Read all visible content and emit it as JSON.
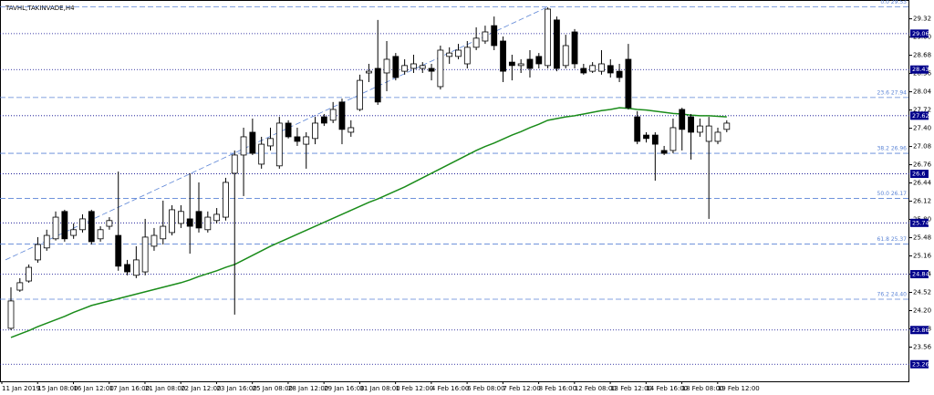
{
  "chart_data": {
    "type": "candlestick",
    "title": "TAVHL,TAKINVADE,H4",
    "categories": [
      "11 Jan 2019",
      null,
      null,
      null,
      "15 Jan 08:00",
      null,
      null,
      null,
      "16 Jan 12:00",
      null,
      null,
      null,
      "17 Jan 16:00",
      null,
      null,
      null,
      "21 Jan 08:00",
      null,
      null,
      null,
      "22 Jan 12:00",
      null,
      null,
      null,
      "23 Jan 16:00",
      null,
      null,
      null,
      "25 Jan 08:00",
      null,
      null,
      null,
      "28 Jan 12:00",
      null,
      null,
      null,
      "29 Jan 16:00",
      null,
      null,
      null,
      "31 Jan 08:00",
      null,
      null,
      null,
      "1 Feb 12:00",
      null,
      null,
      null,
      "4 Feb 16:00",
      null,
      null,
      null,
      "6 Feb 08:00",
      null,
      null,
      null,
      "7 Feb 12:00",
      null,
      null,
      null,
      "8 Feb 16:00",
      null,
      null,
      null,
      "12 Feb 08:00",
      null,
      null,
      null,
      "13 Feb 12:00",
      null,
      null,
      null,
      "14 Feb 16:00",
      null,
      null,
      null,
      "18 Feb 08:00",
      null,
      null,
      null,
      "19 Feb 12:00"
    ],
    "open": [
      23.89,
      24.56,
      24.72,
      25.09,
      25.3,
      25.46,
      25.94,
      25.52,
      25.62,
      25.94,
      25.46,
      25.68,
      25.52,
      25.01,
      24.82,
      24.88,
      25.33,
      25.46,
      25.57,
      25.73,
      25.81,
      25.94,
      25.62,
      25.78,
      25.84,
      26.61,
      26.93,
      27.33,
      26.77,
      27.09,
      26.74,
      27.49,
      27.25,
      27.12,
      27.22,
      27.6,
      27.54,
      27.86,
      27.33,
      27.73,
      28.37,
      28.45,
      28.37,
      28.66,
      28.4,
      28.45,
      28.45,
      28.45,
      28.13,
      28.66,
      28.66,
      28.53,
      28.82,
      28.93,
      29.2,
      28.93,
      28.56,
      28.5,
      28.61,
      28.66,
      28.5,
      29.3,
      28.5,
      29.09,
      28.45,
      28.4,
      28.4,
      28.5,
      28.4,
      28.61,
      27.6,
      27.28,
      27.28,
      27.01,
      27.01,
      27.73,
      27.6,
      27.33,
      27.17,
      27.17,
      27.38
    ],
    "high": [
      24.61,
      24.77,
      25.01,
      25.49,
      25.62,
      25.94,
      25.97,
      25.73,
      25.89,
      25.97,
      25.68,
      25.84,
      26.64,
      25.09,
      25.33,
      25.81,
      25.65,
      26.13,
      26.05,
      26.05,
      26.61,
      26.45,
      25.94,
      26.0,
      26.53,
      27.01,
      27.41,
      27.57,
      27.25,
      27.41,
      27.6,
      27.54,
      27.41,
      27.33,
      27.6,
      27.65,
      27.86,
      27.92,
      27.54,
      28.34,
      28.53,
      29.3,
      28.93,
      28.72,
      28.61,
      28.69,
      28.56,
      28.53,
      28.85,
      28.82,
      28.88,
      28.93,
      29.17,
      29.2,
      29.36,
      29.01,
      28.69,
      28.61,
      28.77,
      28.72,
      29.52,
      29.36,
      29.04,
      29.14,
      28.53,
      28.56,
      28.77,
      28.61,
      28.53,
      28.88,
      27.7,
      27.33,
      27.33,
      27.09,
      27.57,
      27.76,
      27.65,
      27.57,
      27.6,
      27.41,
      27.54
    ],
    "low": [
      23.86,
      24.53,
      24.69,
      25.04,
      25.25,
      25.43,
      25.41,
      25.46,
      25.57,
      25.36,
      25.41,
      25.62,
      24.9,
      24.82,
      24.77,
      24.82,
      25.25,
      25.36,
      25.52,
      25.65,
      25.2,
      25.57,
      25.57,
      25.73,
      25.78,
      24.13,
      26.21,
      26.93,
      26.69,
      27.01,
      26.69,
      27.22,
      27.09,
      26.69,
      27.12,
      27.44,
      27.49,
      27.12,
      27.25,
      27.7,
      28.21,
      27.81,
      28.05,
      28.24,
      28.34,
      28.37,
      28.37,
      28.24,
      28.08,
      28.53,
      28.61,
      28.45,
      28.77,
      28.88,
      28.77,
      28.21,
      28.24,
      28.37,
      28.29,
      28.45,
      28.45,
      28.4,
      28.45,
      28.45,
      28.34,
      28.37,
      28.34,
      28.29,
      28.21,
      27.73,
      27.12,
      27.15,
      26.48,
      26.93,
      26.96,
      27.01,
      26.85,
      27.25,
      25.81,
      27.12,
      27.33
    ],
    "close": [
      24.37,
      24.69,
      24.96,
      25.36,
      25.52,
      25.84,
      25.46,
      25.62,
      25.81,
      25.41,
      25.62,
      25.78,
      24.98,
      24.88,
      25.09,
      25.49,
      25.52,
      25.68,
      25.97,
      25.94,
      25.68,
      25.65,
      25.84,
      25.89,
      26.45,
      26.93,
      27.25,
      26.96,
      27.12,
      27.22,
      27.49,
      27.25,
      27.17,
      27.25,
      27.49,
      27.49,
      27.73,
      27.38,
      27.41,
      28.24,
      28.4,
      27.86,
      28.61,
      28.29,
      28.5,
      28.53,
      28.5,
      28.4,
      28.77,
      28.72,
      28.77,
      28.82,
      28.98,
      29.09,
      28.85,
      28.4,
      28.5,
      28.53,
      28.45,
      28.53,
      29.49,
      28.45,
      28.85,
      28.53,
      28.37,
      28.5,
      28.53,
      28.37,
      28.29,
      27.76,
      27.17,
      27.22,
      27.12,
      26.96,
      27.41,
      27.38,
      27.33,
      27.44,
      27.44,
      27.33,
      27.49
    ],
    "up_color": "#ffffff",
    "down_color": "#000000",
    "ma": {
      "color": "#1a8c1a",
      "values": [
        23.73,
        23.79,
        23.85,
        23.92,
        23.98,
        24.04,
        24.1,
        24.17,
        24.23,
        24.29,
        24.33,
        24.37,
        24.41,
        24.45,
        24.49,
        24.53,
        24.57,
        24.61,
        24.65,
        24.69,
        24.74,
        24.8,
        24.85,
        24.9,
        24.96,
        25.01,
        25.09,
        25.17,
        25.25,
        25.33,
        25.4,
        25.47,
        25.54,
        25.61,
        25.68,
        25.75,
        25.82,
        25.89,
        25.96,
        26.03,
        26.1,
        26.16,
        26.23,
        26.3,
        26.37,
        26.45,
        26.53,
        26.61,
        26.69,
        26.77,
        26.85,
        26.93,
        27.01,
        27.08,
        27.14,
        27.21,
        27.28,
        27.34,
        27.41,
        27.47,
        27.54,
        27.57,
        27.6,
        27.62,
        27.65,
        27.68,
        27.71,
        27.73,
        27.76,
        27.75,
        27.73,
        27.72,
        27.7,
        27.68,
        27.66,
        27.65,
        27.63,
        27.62,
        27.62,
        27.61,
        27.6
      ]
    },
    "ylim": [
      22.96,
      29.65
    ],
    "yticks": [
      23.56,
      23.88,
      {
        "value": 24.2,
        "label": "24.20"
      },
      24.52,
      24.84,
      25.16,
      25.48,
      {
        "value": 25.8,
        "label": "25.80"
      },
      26.12,
      26.44,
      26.76,
      27.08,
      {
        "value": 27.4,
        "label": "27.40"
      },
      27.72,
      28.04,
      28.36,
      28.68,
      {
        "value": 29,
        "label": "29.00"
      },
      29.32
    ],
    "levels": [
      29.06,
      28.43,
      27.62,
      26.6,
      25.74,
      24.84,
      23.86,
      23.26
    ],
    "level_color": "#00008b",
    "fib_levels": [
      {
        "value": 29.53,
        "label": "0.0 29.53"
      },
      {
        "value": 27.94,
        "label": "23.6 27.94"
      },
      {
        "value": 26.96,
        "label": "38.2 26.96"
      },
      {
        "value": 26.17,
        "label": "50.0 26.17"
      },
      {
        "value": 25.37,
        "label": "61.8 25.37"
      },
      {
        "value": 24.4,
        "label": "76.2 24.40"
      }
    ],
    "fib_color": "#5b84d6",
    "fib_trendline": {
      "x": [
        0,
        60
      ],
      "values": [
        25.09,
        29.53
      ]
    }
  }
}
